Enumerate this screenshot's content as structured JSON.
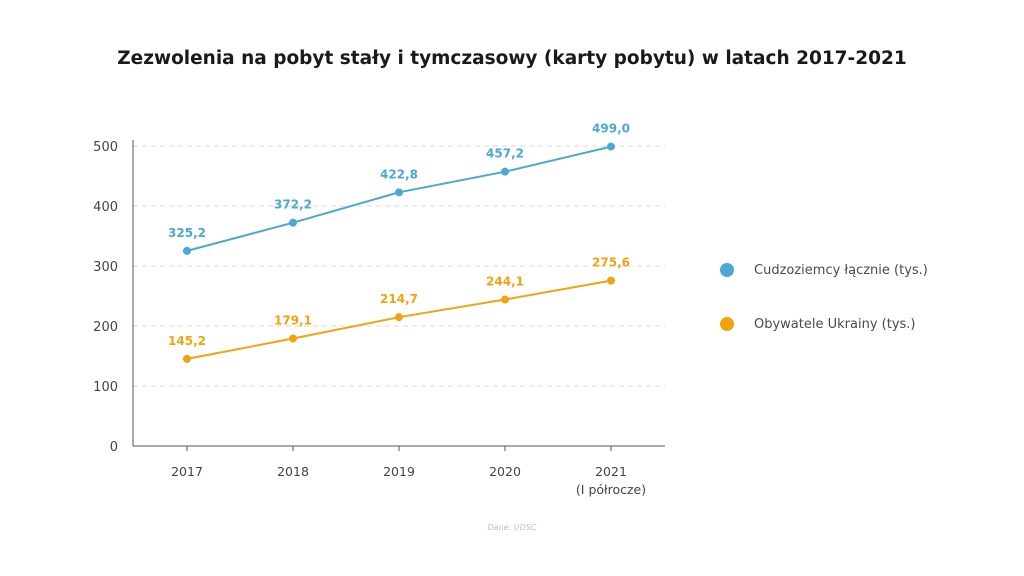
{
  "chart_data": {
    "type": "line",
    "title": "Zezwolenia na pobyt stały i tymczasowy (karty pobytu) w latach 2017-2021",
    "categories": [
      "2017",
      "2018",
      "2019",
      "2020",
      "2021\n(I półrocze)"
    ],
    "series": [
      {
        "name": "Cudzoziemcy łącznie (tys.)",
        "color": "#4aa8d2",
        "values": [
          325.2,
          372.2,
          422.8,
          457.2,
          499.0
        ],
        "labels": [
          "325,2",
          "372,2",
          "422,8",
          "457,2",
          "499,0"
        ]
      },
      {
        "name": "Obywatele Ukrainy (tys.)",
        "color": "#f2a30f",
        "values": [
          145.2,
          179.1,
          214.7,
          244.1,
          275.6
        ],
        "labels": [
          "145,2",
          "179,1",
          "214,7",
          "244,1",
          "275,6"
        ]
      }
    ],
    "ylim": [
      0,
      500
    ],
    "yticks": [
      "0",
      "100",
      "200",
      "300",
      "400",
      "500"
    ],
    "grid": true,
    "legend_position": "right"
  },
  "source": "Dane: UDSC"
}
